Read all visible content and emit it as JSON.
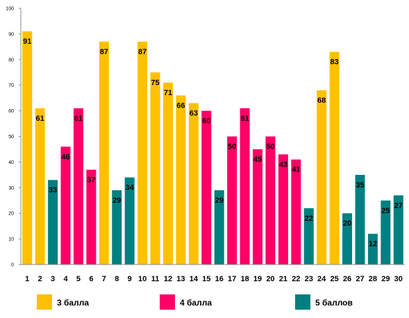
{
  "chart_data": {
    "type": "bar",
    "categories": [
      "1",
      "2",
      "3",
      "4",
      "5",
      "6",
      "7",
      "8",
      "9",
      "10",
      "11",
      "12",
      "13",
      "14",
      "15",
      "16",
      "17",
      "18",
      "19",
      "20",
      "21",
      "22",
      "23",
      "24",
      "25",
      "26",
      "27",
      "28",
      "29",
      "30"
    ],
    "values": [
      91,
      61,
      33,
      46,
      61,
      37,
      87,
      29,
      34,
      87,
      75,
      71,
      66,
      63,
      60,
      29,
      50,
      61,
      45,
      50,
      43,
      41,
      22,
      68,
      83,
      20,
      35,
      12,
      25,
      27
    ],
    "groups": [
      0,
      0,
      2,
      1,
      1,
      1,
      0,
      2,
      2,
      0,
      0,
      0,
      0,
      0,
      1,
      2,
      1,
      1,
      1,
      1,
      1,
      1,
      2,
      0,
      0,
      2,
      2,
      2,
      2,
      2
    ],
    "series": [
      {
        "name": "3 балла",
        "color": "#FFC000"
      },
      {
        "name": "4 балла",
        "color": "#FF0066"
      },
      {
        "name": "5 баллов",
        "color": "#008080"
      }
    ],
    "ylim": [
      0,
      100
    ],
    "yticks": [
      0,
      10,
      20,
      30,
      40,
      50,
      60,
      70,
      80,
      90,
      100
    ],
    "grid": false,
    "legend_position": "bottom",
    "title": "",
    "xlabel": "",
    "ylabel": ""
  }
}
